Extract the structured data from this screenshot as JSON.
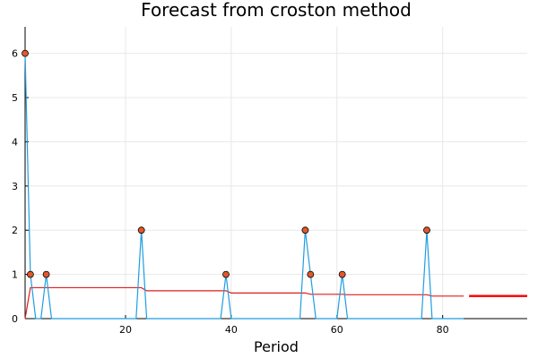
{
  "chart_data": {
    "type": "line",
    "title": "Forecast from croston method",
    "xlabel": "Period",
    "ylabel": "",
    "xlim": [
      1,
      96
    ],
    "ylim": [
      0,
      6.6
    ],
    "xticks": [
      20,
      40,
      60,
      80
    ],
    "yticks": [
      0,
      1,
      2,
      3,
      4,
      5,
      6
    ],
    "grid": true,
    "legend": "none",
    "colors": {
      "observed": "#1f9ee0",
      "points": "#e2582c",
      "fitted": "#e21b1b",
      "forecast": "#ff0000"
    },
    "series": [
      {
        "values": [
          [
            1,
            6
          ],
          [
            2,
            1
          ],
          [
            3,
            0
          ],
          [
            4,
            0
          ],
          [
            5,
            1
          ],
          [
            6,
            0
          ],
          [
            7,
            0
          ],
          [
            8,
            0
          ],
          [
            9,
            0
          ],
          [
            10,
            0
          ],
          [
            11,
            0
          ],
          [
            12,
            0
          ],
          [
            13,
            0
          ],
          [
            14,
            0
          ],
          [
            15,
            0
          ],
          [
            16,
            0
          ],
          [
            17,
            0
          ],
          [
            18,
            0
          ],
          [
            19,
            0
          ],
          [
            20,
            0
          ],
          [
            21,
            0
          ],
          [
            22,
            0
          ],
          [
            23,
            2
          ],
          [
            24,
            0
          ],
          [
            25,
            0
          ],
          [
            26,
            0
          ],
          [
            27,
            0
          ],
          [
            28,
            0
          ],
          [
            29,
            0
          ],
          [
            30,
            0
          ],
          [
            31,
            0
          ],
          [
            32,
            0
          ],
          [
            33,
            0
          ],
          [
            34,
            0
          ],
          [
            35,
            0
          ],
          [
            36,
            0
          ],
          [
            37,
            0
          ],
          [
            38,
            0
          ],
          [
            39,
            1
          ],
          [
            40,
            0
          ],
          [
            41,
            0
          ],
          [
            42,
            0
          ],
          [
            43,
            0
          ],
          [
            44,
            0
          ],
          [
            45,
            0
          ],
          [
            46,
            0
          ],
          [
            47,
            0
          ],
          [
            48,
            0
          ],
          [
            49,
            0
          ],
          [
            50,
            0
          ],
          [
            51,
            0
          ],
          [
            52,
            0
          ],
          [
            53,
            0
          ],
          [
            54,
            2
          ],
          [
            55,
            1
          ],
          [
            56,
            0
          ],
          [
            57,
            0
          ],
          [
            58,
            0
          ],
          [
            59,
            0
          ],
          [
            60,
            0
          ],
          [
            61,
            1
          ],
          [
            62,
            0
          ],
          [
            63,
            0
          ],
          [
            64,
            0
          ],
          [
            65,
            0
          ],
          [
            66,
            0
          ],
          [
            67,
            0
          ],
          [
            68,
            0
          ],
          [
            69,
            0
          ],
          [
            70,
            0
          ],
          [
            71,
            0
          ],
          [
            72,
            0
          ],
          [
            73,
            0
          ],
          [
            74,
            0
          ],
          [
            75,
            0
          ],
          [
            76,
            0
          ],
          [
            77,
            2
          ],
          [
            78,
            0
          ],
          [
            79,
            0
          ],
          [
            80,
            0
          ],
          [
            81,
            0
          ],
          [
            82,
            0
          ],
          [
            83,
            0
          ],
          [
            84,
            0
          ]
        ]
      },
      {
        "values": [
          [
            1,
            0
          ],
          [
            2,
            0.7
          ],
          [
            23,
            0.7
          ],
          [
            24,
            0.63
          ],
          [
            39,
            0.63
          ],
          [
            40,
            0.58
          ],
          [
            54,
            0.58
          ],
          [
            55,
            0.55
          ],
          [
            61,
            0.55
          ],
          [
            62,
            0.54
          ],
          [
            77,
            0.54
          ],
          [
            78,
            0.51
          ],
          [
            84,
            0.51
          ]
        ]
      },
      {
        "values": [
          [
            85,
            0.51
          ],
          [
            96,
            0.51
          ]
        ]
      }
    ]
  }
}
